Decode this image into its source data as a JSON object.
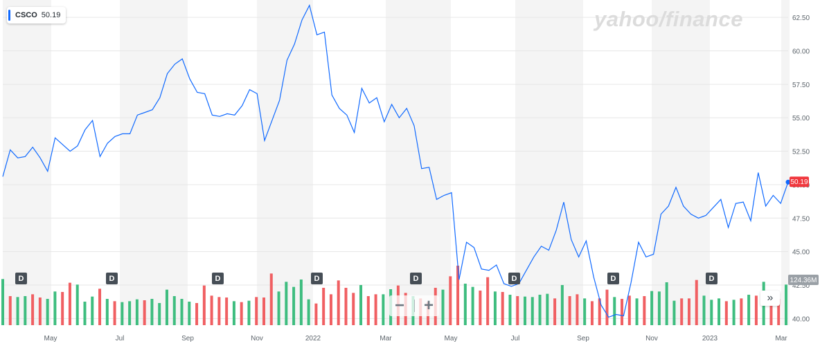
{
  "ticker": {
    "symbol": "CSCO",
    "price": "50.19"
  },
  "brand": "yahoo/finance",
  "last_price_label": "50.19",
  "volume_label": "124.36M",
  "dividend_badge": "D",
  "colors": {
    "line": "#0f69ff",
    "volume_up": "#3ebd7f",
    "volume_down": "#f05f62",
    "band": "#f4f4f4",
    "price_badge": "#f0383e",
    "volume_badge": "#9aa0a6"
  },
  "chart_data": {
    "type": "line",
    "title": "",
    "xlabel": "",
    "ylabel": "",
    "ylim": [
      39.5,
      63.8
    ],
    "y_ticks": [
      "62.50",
      "60.00",
      "57.50",
      "55.00",
      "52.50",
      "50.00",
      "47.50",
      "45.00",
      "42.50",
      "40.00"
    ],
    "y_tick_values": [
      62.5,
      60.0,
      57.5,
      55.0,
      52.5,
      50.0,
      47.5,
      45.0,
      42.5,
      40.0
    ],
    "x_ticks": [
      "May",
      "Jul",
      "Sep",
      "Nov",
      "2022",
      "Mar",
      "May",
      "Jul",
      "Sep",
      "Nov",
      "2023",
      "Mar"
    ],
    "grid": true,
    "series": [
      {
        "values": [
          50.6,
          52.6,
          52.0,
          52.1,
          52.8,
          52.0,
          51.0,
          53.5,
          53.0,
          52.5,
          52.9,
          54.1,
          54.8,
          52.1,
          53.1,
          53.6,
          53.8,
          53.8,
          55.2,
          55.4,
          55.6,
          56.5,
          58.3,
          59.0,
          59.4,
          57.9,
          56.9,
          56.8,
          55.2,
          55.1,
          55.3,
          55.2,
          55.9,
          57.1,
          56.8,
          53.3,
          54.8,
          56.3,
          59.3,
          60.5,
          62.3,
          63.4,
          61.2,
          61.4,
          56.7,
          55.7,
          55.2,
          53.9,
          57.2,
          56.1,
          56.5,
          54.7,
          56.0,
          55.0,
          55.7,
          54.4,
          51.2,
          51.3,
          48.9,
          49.2,
          49.4,
          42.9,
          45.7,
          45.3,
          43.7,
          43.6,
          44.0,
          42.6,
          42.4,
          42.6,
          43.6,
          44.6,
          45.4,
          45.1,
          46.6,
          48.7,
          45.9,
          44.6,
          45.8,
          43.1,
          41.0,
          40.1,
          40.3,
          40.2,
          42.7,
          45.7,
          44.6,
          44.8,
          47.8,
          48.4,
          49.8,
          48.4,
          47.8,
          47.5,
          47.7,
          48.3,
          48.9,
          46.8,
          48.6,
          48.7,
          47.3,
          50.9,
          48.4,
          49.2,
          48.6,
          50.19
        ]
      }
    ],
    "volume": {
      "label": "Volume",
      "values": [
        1.0,
        0.63,
        0.61,
        0.63,
        0.67,
        0.6,
        0.57,
        0.73,
        0.72,
        0.92,
        0.88,
        0.51,
        0.62,
        0.79,
        0.57,
        0.52,
        0.5,
        0.52,
        0.56,
        0.54,
        0.57,
        0.48,
        0.77,
        0.63,
        0.57,
        0.51,
        0.48,
        0.86,
        0.64,
        0.61,
        0.6,
        0.52,
        0.5,
        0.53,
        0.61,
        0.6,
        1.12,
        0.73,
        0.94,
        0.83,
        0.99,
        0.56,
        0.47,
        0.81,
        0.67,
        0.97,
        0.81,
        0.7,
        0.87,
        0.63,
        0.67,
        0.67,
        0.78,
        0.86,
        0.7,
        0.63,
        0.58,
        0.5,
        0.81,
        0.77,
        1.06,
        1.29,
        0.9,
        0.83,
        0.75,
        1.04,
        0.73,
        0.72,
        0.66,
        0.63,
        0.62,
        0.61,
        0.66,
        0.68,
        0.58,
        0.87,
        0.63,
        0.67,
        0.58,
        0.52,
        0.58,
        0.77,
        0.61,
        0.57,
        0.64,
        0.58,
        0.63,
        0.74,
        0.73,
        0.93,
        0.53,
        0.58,
        0.58,
        0.98,
        0.64,
        0.55,
        0.58,
        0.52,
        0.55,
        0.58,
        0.66,
        0.64,
        0.94,
        0.74,
        0.57,
        0.88
      ],
      "up": [
        true,
        false,
        true,
        true,
        false,
        false,
        true,
        true,
        false,
        false,
        true,
        true,
        true,
        false,
        true,
        false,
        true,
        true,
        true,
        false,
        true,
        true,
        true,
        true,
        true,
        true,
        false,
        false,
        false,
        false,
        false,
        true,
        false,
        true,
        false,
        false,
        false,
        true,
        true,
        true,
        true,
        true,
        false,
        false,
        false,
        false,
        false,
        false,
        true,
        false,
        false,
        true,
        true,
        false,
        false,
        true,
        false,
        false,
        false,
        true,
        false,
        false,
        true,
        true,
        false,
        false,
        true,
        false,
        true,
        false,
        true,
        true,
        true,
        true,
        false,
        true,
        false,
        false,
        true,
        false,
        false,
        false,
        true,
        false,
        false,
        true,
        false,
        true,
        true,
        true,
        true,
        false,
        false,
        false,
        true,
        true,
        true,
        false,
        true,
        false,
        true,
        false,
        true,
        false,
        false,
        true
      ]
    }
  }
}
